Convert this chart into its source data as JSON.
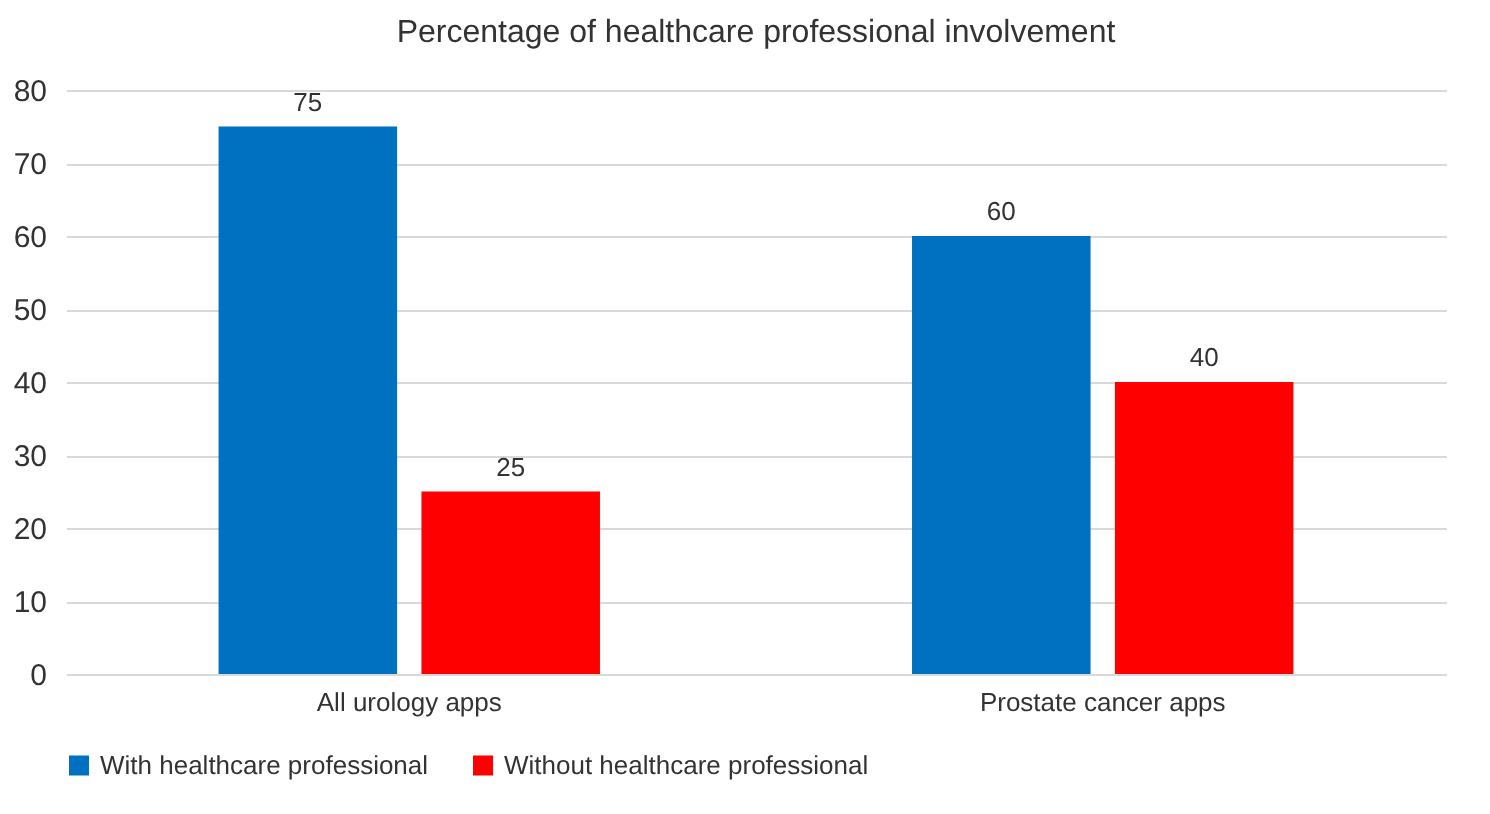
{
  "chart_data": {
    "type": "bar",
    "title": "Percentage of healthcare professional involvement",
    "categories": [
      "All urology apps",
      "Prostate cancer apps"
    ],
    "series": [
      {
        "name": "With healthcare professional",
        "color": "#0070c0",
        "values": [
          75,
          60
        ]
      },
      {
        "name": "Without healthcare professional",
        "color": "#ff0000",
        "values": [
          25,
          40
        ]
      }
    ],
    "ylim": [
      0,
      80
    ],
    "yticks": [
      0,
      10,
      20,
      30,
      40,
      50,
      60,
      70,
      80
    ],
    "grid": "y",
    "legend": "bottom",
    "data_labels": true
  }
}
